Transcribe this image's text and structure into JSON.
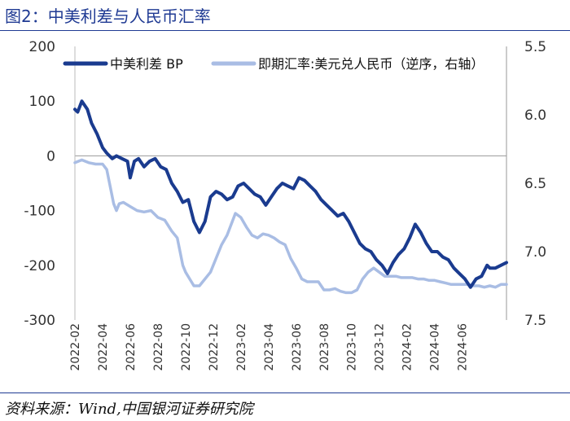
{
  "title": "图2：中美利差与人民币汇率",
  "source": "资料来源：Wind,中国银河证券研究院",
  "chart_data": {
    "type": "line",
    "title": "图2：中美利差与人民币汇率",
    "xlabel": "",
    "ylabel": "",
    "left_ylim": [
      -300,
      200
    ],
    "right_ylim": [
      5.5,
      7.5
    ],
    "right_inverted": true,
    "left_ticks": [
      "200",
      "100",
      "0",
      "-100",
      "-200",
      "-300"
    ],
    "right_ticks": [
      "5.5",
      "6.0",
      "6.5",
      "7.0",
      "7.5"
    ],
    "categories": [
      "2022-02",
      "2022-04",
      "2022-06",
      "2022-08",
      "2022-10",
      "2022-12",
      "2023-02",
      "2023-04",
      "2023-06",
      "2023-08",
      "2023-10",
      "2023-12",
      "2024-02",
      "2024-04",
      "2024-06"
    ],
    "x_range_months": [
      0,
      30
    ],
    "series": [
      {
        "name": "中美利差 BP",
        "axis": "left",
        "color": "#1a3b8f",
        "points": [
          [
            0.0,
            85
          ],
          [
            0.2,
            80
          ],
          [
            0.5,
            100
          ],
          [
            0.9,
            85
          ],
          [
            1.2,
            60
          ],
          [
            1.6,
            40
          ],
          [
            2.0,
            15
          ],
          [
            2.3,
            5
          ],
          [
            2.7,
            -5
          ],
          [
            3.0,
            0
          ],
          [
            3.4,
            -5
          ],
          [
            3.8,
            -10
          ],
          [
            4.0,
            -40
          ],
          [
            4.3,
            -10
          ],
          [
            4.6,
            -5
          ],
          [
            5.0,
            -20
          ],
          [
            5.4,
            -10
          ],
          [
            5.8,
            -5
          ],
          [
            6.2,
            -20
          ],
          [
            6.6,
            -25
          ],
          [
            7.0,
            -50
          ],
          [
            7.4,
            -65
          ],
          [
            7.8,
            -85
          ],
          [
            8.2,
            -80
          ],
          [
            8.6,
            -120
          ],
          [
            9.0,
            -140
          ],
          [
            9.4,
            -120
          ],
          [
            9.8,
            -75
          ],
          [
            10.2,
            -65
          ],
          [
            10.6,
            -70
          ],
          [
            11.0,
            -80
          ],
          [
            11.4,
            -75
          ],
          [
            11.8,
            -55
          ],
          [
            12.2,
            -50
          ],
          [
            12.6,
            -60
          ],
          [
            13.0,
            -70
          ],
          [
            13.4,
            -75
          ],
          [
            13.8,
            -90
          ],
          [
            14.2,
            -75
          ],
          [
            14.6,
            -60
          ],
          [
            15.0,
            -50
          ],
          [
            15.4,
            -55
          ],
          [
            15.8,
            -60
          ],
          [
            16.2,
            -40
          ],
          [
            16.6,
            -45
          ],
          [
            17.0,
            -55
          ],
          [
            17.4,
            -65
          ],
          [
            17.8,
            -80
          ],
          [
            18.2,
            -90
          ],
          [
            18.6,
            -100
          ],
          [
            19.0,
            -110
          ],
          [
            19.4,
            -105
          ],
          [
            19.8,
            -120
          ],
          [
            20.2,
            -140
          ],
          [
            20.6,
            -160
          ],
          [
            21.0,
            -170
          ],
          [
            21.4,
            -175
          ],
          [
            21.8,
            -190
          ],
          [
            22.2,
            -200
          ],
          [
            22.6,
            -215
          ],
          [
            23.0,
            -195
          ],
          [
            23.4,
            -180
          ],
          [
            23.8,
            -170
          ],
          [
            24.2,
            -150
          ],
          [
            24.6,
            -125
          ],
          [
            25.0,
            -140
          ],
          [
            25.4,
            -160
          ],
          [
            25.8,
            -175
          ],
          [
            26.2,
            -175
          ],
          [
            26.6,
            -185
          ],
          [
            27.0,
            -190
          ],
          [
            27.4,
            -205
          ],
          [
            27.8,
            -215
          ],
          [
            28.2,
            -225
          ],
          [
            28.6,
            -240
          ],
          [
            29.0,
            -225
          ],
          [
            29.4,
            -220
          ],
          [
            29.8,
            -200
          ],
          [
            30.0,
            -205
          ],
          [
            30.4,
            -205
          ],
          [
            30.8,
            -200
          ],
          [
            31.2,
            -195
          ]
        ]
      },
      {
        "name": "即期汇率:美元兑人民币（逆序，右轴）",
        "axis": "right",
        "color": "#a9bde4",
        "points": [
          [
            0.0,
            6.35
          ],
          [
            0.5,
            6.33
          ],
          [
            1.0,
            6.35
          ],
          [
            1.5,
            6.36
          ],
          [
            2.0,
            6.36
          ],
          [
            2.3,
            6.4
          ],
          [
            2.5,
            6.5
          ],
          [
            2.8,
            6.65
          ],
          [
            3.0,
            6.7
          ],
          [
            3.2,
            6.65
          ],
          [
            3.5,
            6.64
          ],
          [
            4.0,
            6.67
          ],
          [
            4.5,
            6.7
          ],
          [
            5.0,
            6.71
          ],
          [
            5.5,
            6.7
          ],
          [
            6.0,
            6.75
          ],
          [
            6.5,
            6.77
          ],
          [
            7.0,
            6.85
          ],
          [
            7.4,
            6.9
          ],
          [
            7.8,
            7.1
          ],
          [
            8.0,
            7.15
          ],
          [
            8.3,
            7.2
          ],
          [
            8.6,
            7.25
          ],
          [
            9.0,
            7.25
          ],
          [
            9.4,
            7.2
          ],
          [
            9.8,
            7.15
          ],
          [
            10.2,
            7.05
          ],
          [
            10.6,
            6.95
          ],
          [
            11.0,
            6.88
          ],
          [
            11.3,
            6.8
          ],
          [
            11.6,
            6.72
          ],
          [
            12.0,
            6.75
          ],
          [
            12.4,
            6.82
          ],
          [
            12.8,
            6.88
          ],
          [
            13.2,
            6.9
          ],
          [
            13.6,
            6.87
          ],
          [
            14.0,
            6.88
          ],
          [
            14.4,
            6.9
          ],
          [
            14.8,
            6.93
          ],
          [
            15.2,
            6.95
          ],
          [
            15.6,
            7.05
          ],
          [
            16.0,
            7.12
          ],
          [
            16.4,
            7.2
          ],
          [
            16.8,
            7.22
          ],
          [
            17.2,
            7.22
          ],
          [
            17.6,
            7.22
          ],
          [
            18.0,
            7.28
          ],
          [
            18.4,
            7.28
          ],
          [
            18.8,
            7.27
          ],
          [
            19.2,
            7.29
          ],
          [
            19.6,
            7.3
          ],
          [
            20.0,
            7.3
          ],
          [
            20.4,
            7.28
          ],
          [
            20.8,
            7.2
          ],
          [
            21.2,
            7.15
          ],
          [
            21.6,
            7.12
          ],
          [
            22.0,
            7.15
          ],
          [
            22.4,
            7.18
          ],
          [
            22.8,
            7.18
          ],
          [
            23.2,
            7.18
          ],
          [
            23.6,
            7.19
          ],
          [
            24.0,
            7.19
          ],
          [
            24.4,
            7.19
          ],
          [
            24.8,
            7.2
          ],
          [
            25.2,
            7.2
          ],
          [
            25.6,
            7.21
          ],
          [
            26.0,
            7.21
          ],
          [
            26.4,
            7.22
          ],
          [
            26.8,
            7.23
          ],
          [
            27.2,
            7.24
          ],
          [
            27.6,
            7.24
          ],
          [
            28.0,
            7.24
          ],
          [
            28.4,
            7.24
          ],
          [
            28.8,
            7.25
          ],
          [
            29.2,
            7.25
          ],
          [
            29.6,
            7.26
          ],
          [
            30.0,
            7.25
          ],
          [
            30.4,
            7.26
          ],
          [
            30.8,
            7.24
          ],
          [
            31.2,
            7.24
          ]
        ]
      }
    ],
    "legend": [
      "中美利差 BP",
      "即期汇率:美元兑人民币（逆序，右轴）"
    ]
  }
}
